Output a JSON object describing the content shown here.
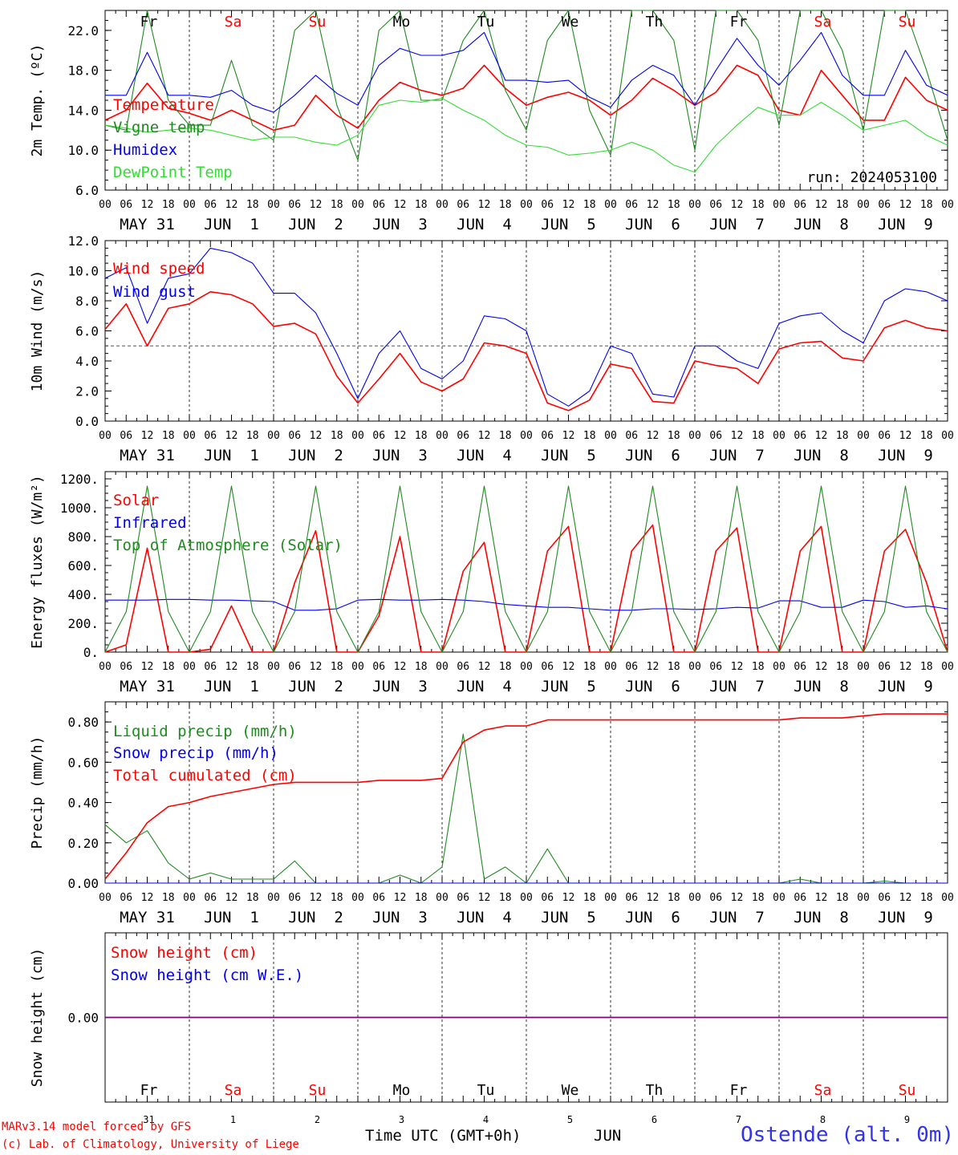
{
  "days": [
    {
      "dow": "Fr",
      "weekend": false,
      "date": "31"
    },
    {
      "dow": "Sa",
      "weekend": true,
      "date": "1"
    },
    {
      "dow": "Su",
      "weekend": true,
      "date": "2"
    },
    {
      "dow": "Mo",
      "weekend": false,
      "date": "3"
    },
    {
      "dow": "Tu",
      "weekend": false,
      "date": "4"
    },
    {
      "dow": "We",
      "weekend": false,
      "date": "5"
    },
    {
      "dow": "Th",
      "weekend": false,
      "date": "6"
    },
    {
      "dow": "Fr",
      "weekend": false,
      "date": "7"
    },
    {
      "dow": "Sa",
      "weekend": true,
      "date": "8"
    },
    {
      "dow": "Su",
      "weekend": true,
      "date": "9"
    }
  ],
  "hour_ticks": [
    "00",
    "06",
    "12",
    "18"
  ],
  "date_labels": [
    "MAY 31",
    "JUN  1",
    "JUN  2",
    "JUN  3",
    "JUN  4",
    "JUN  5",
    "JUN  6",
    "JUN  7",
    "JUN  8",
    "JUN  9"
  ],
  "colors": {
    "red": "#ff0000",
    "green": "#1f8a1f",
    "blue": "#0000ee",
    "lightgreen": "#33dd33",
    "weekend": "#ff0000",
    "purple": "#7f007f"
  },
  "footer": {
    "credit1": "MARv3.14 model forced by GFS",
    "credit2": "(c) Lab. of Climatology, University of Liege",
    "xlabel": "Time UTC (GMT+0h)",
    "month": "JUN",
    "station": "Ostende (alt. 0m)"
  },
  "chart_data": [
    {
      "type": "line",
      "ylabel": "2m Temp. (ºC)",
      "ylim": [
        6,
        24
      ],
      "yticks": [
        "6.0",
        "10.0",
        "14.0",
        "18.0",
        "22.0"
      ],
      "annotation": "run: 2024053100",
      "hours": [
        0,
        6,
        12,
        18,
        24,
        30,
        36,
        42,
        48,
        54,
        60,
        66,
        72,
        78,
        84,
        90,
        96,
        102,
        108,
        114,
        120,
        126,
        132,
        138,
        144,
        150,
        156,
        162,
        168,
        174,
        180,
        186,
        192,
        198,
        204,
        210,
        216,
        222,
        228,
        234,
        240
      ],
      "series": [
        {
          "name": "Temperature",
          "color": "red",
          "values": [
            13.0,
            14.0,
            16.7,
            14.2,
            13.7,
            13.0,
            14.0,
            13.0,
            12.0,
            12.5,
            15.5,
            13.5,
            12.2,
            15.0,
            16.8,
            16.0,
            15.5,
            16.2,
            18.5,
            16.2,
            14.5,
            15.3,
            15.8,
            15.0,
            13.5,
            15.0,
            17.2,
            16.0,
            14.5,
            15.8,
            18.5,
            17.5,
            14.0,
            13.5,
            18.0,
            15.5,
            13.0,
            13.0,
            17.3,
            15.0,
            14.0
          ]
        },
        {
          "name": "Vigne temp",
          "color": "green",
          "values": [
            12.5,
            12.0,
            24.0,
            15.0,
            12.5,
            12.5,
            19.0,
            12.5,
            11.0,
            22.0,
            24.0,
            14.5,
            9.0,
            22.0,
            24.0,
            15.0,
            15.0,
            21.0,
            24.0,
            16.0,
            12.0,
            21.0,
            24.0,
            14.0,
            9.5,
            24.0,
            24.0,
            21.0,
            10.0,
            24.0,
            24.0,
            21.0,
            12.5,
            24.0,
            24.0,
            20.0,
            12.0,
            24.0,
            24.0,
            18.0,
            11.0
          ]
        },
        {
          "name": "Humidex",
          "color": "blue",
          "values": [
            15.5,
            15.5,
            19.8,
            15.5,
            15.5,
            15.3,
            16.0,
            14.5,
            13.8,
            15.5,
            17.5,
            15.7,
            14.5,
            18.5,
            20.2,
            19.5,
            19.5,
            20.0,
            21.8,
            17.0,
            17.0,
            16.8,
            17.0,
            15.3,
            14.3,
            17.0,
            18.5,
            17.5,
            14.5,
            18.0,
            21.2,
            18.5,
            16.5,
            19.0,
            21.8,
            17.5,
            15.5,
            15.5,
            20.0,
            16.5,
            15.5
          ]
        },
        {
          "name": "DewPoint Temp",
          "color": "lightgreen",
          "values": [
            12.5,
            12.2,
            11.8,
            12.0,
            12.2,
            12.0,
            11.5,
            11.0,
            11.3,
            11.3,
            10.8,
            10.5,
            11.5,
            14.5,
            15.0,
            14.8,
            15.2,
            14.0,
            13.0,
            11.5,
            10.5,
            10.3,
            9.5,
            9.7,
            10.0,
            10.8,
            10.0,
            8.5,
            7.8,
            10.5,
            12.5,
            14.3,
            13.5,
            13.5,
            14.8,
            13.5,
            12.0,
            12.5,
            13.0,
            11.5,
            10.5
          ]
        }
      ]
    },
    {
      "type": "line",
      "ylabel": "10m Wind (m/s)",
      "ylim": [
        0,
        12
      ],
      "yticks": [
        "0.0",
        "2.0",
        "4.0",
        "6.0",
        "8.0",
        "10.0",
        "12.0"
      ],
      "hours": [
        0,
        6,
        12,
        18,
        24,
        30,
        36,
        42,
        48,
        54,
        60,
        66,
        72,
        78,
        84,
        90,
        96,
        102,
        108,
        114,
        120,
        126,
        132,
        138,
        144,
        150,
        156,
        162,
        168,
        174,
        180,
        186,
        192,
        198,
        204,
        210,
        216,
        222,
        228,
        234,
        240
      ],
      "series": [
        {
          "name": "Wind speed",
          "color": "red",
          "values": [
            6.1,
            7.8,
            5.0,
            7.5,
            7.8,
            8.6,
            8.4,
            7.8,
            6.3,
            6.5,
            5.8,
            3.0,
            1.2,
            2.8,
            4.5,
            2.6,
            2.0,
            2.8,
            5.2,
            5.0,
            4.5,
            1.2,
            0.7,
            1.4,
            3.8,
            3.5,
            1.3,
            1.2,
            4.0,
            3.7,
            3.5,
            2.5,
            4.8,
            5.2,
            5.3,
            4.2,
            4.0,
            6.2,
            6.7,
            6.2,
            6.0
          ]
        },
        {
          "name": "Wind gust",
          "color": "blue",
          "values": [
            9.5,
            10.2,
            6.5,
            9.5,
            9.8,
            11.5,
            11.2,
            10.5,
            8.5,
            8.5,
            7.2,
            4.5,
            1.5,
            4.5,
            6.0,
            3.5,
            2.8,
            4.0,
            7.0,
            6.8,
            6.0,
            1.8,
            1.0,
            2.0,
            5.0,
            4.5,
            1.8,
            1.6,
            5.0,
            5.0,
            4.0,
            3.5,
            6.5,
            7.0,
            7.2,
            6.0,
            5.2,
            8.0,
            8.8,
            8.6,
            8.0
          ]
        },
        {
          "name": "",
          "color": "black",
          "values": [
            5,
            5
          ]
        }
      ]
    },
    {
      "type": "line",
      "ylabel": "Energy fluxes (W/m²)",
      "ylim": [
        0,
        1250
      ],
      "yticks": [
        "0.",
        "200.",
        "400.",
        "600.",
        "800.",
        "1000.",
        "1200."
      ],
      "hours": [
        0,
        6,
        12,
        18,
        24,
        30,
        36,
        42,
        48,
        54,
        60,
        66,
        72,
        78,
        84,
        90,
        96,
        102,
        108,
        114,
        120,
        126,
        132,
        138,
        144,
        150,
        156,
        162,
        168,
        174,
        180,
        186,
        192,
        198,
        204,
        210,
        216,
        222,
        228,
        234,
        240
      ],
      "series": [
        {
          "name": "Solar",
          "color": "red",
          "values": [
            0,
            50,
            720,
            0,
            0,
            20,
            320,
            0,
            0,
            480,
            840,
            0,
            0,
            250,
            800,
            0,
            0,
            560,
            760,
            0,
            0,
            700,
            870,
            0,
            0,
            700,
            880,
            0,
            0,
            700,
            860,
            0,
            0,
            700,
            870,
            0,
            0,
            700,
            850,
            480,
            0
          ]
        },
        {
          "name": "Infrared",
          "color": "blue",
          "values": [
            360,
            360,
            360,
            365,
            365,
            360,
            360,
            355,
            350,
            290,
            290,
            300,
            360,
            365,
            360,
            360,
            365,
            360,
            350,
            330,
            320,
            310,
            310,
            300,
            290,
            290,
            300,
            300,
            295,
            300,
            310,
            305,
            355,
            355,
            310,
            310,
            360,
            350,
            310,
            320,
            300
          ]
        },
        {
          "name": "Top of Atmosphere (Solar)",
          "color": "green",
          "values": [
            0,
            280,
            1150,
            280,
            0,
            280,
            1150,
            280,
            0,
            280,
            1150,
            280,
            0,
            280,
            1150,
            280,
            0,
            280,
            1150,
            280,
            0,
            280,
            1150,
            280,
            0,
            280,
            1150,
            280,
            0,
            280,
            1150,
            280,
            0,
            280,
            1150,
            280,
            0,
            280,
            1150,
            280,
            0
          ]
        }
      ]
    },
    {
      "type": "line",
      "ylabel": "Precip (mm/h)",
      "ylim": [
        0,
        0.9
      ],
      "yticks": [
        "0.00",
        "0.20",
        "0.40",
        "0.60",
        "0.80"
      ],
      "hours": [
        0,
        6,
        12,
        18,
        24,
        30,
        36,
        42,
        48,
        54,
        60,
        66,
        72,
        78,
        84,
        90,
        96,
        102,
        108,
        114,
        120,
        126,
        132,
        138,
        144,
        150,
        156,
        162,
        168,
        174,
        180,
        186,
        192,
        198,
        204,
        210,
        216,
        222,
        228,
        234,
        240
      ],
      "series": [
        {
          "name": "Liquid precip (mm/h)",
          "color": "green",
          "values": [
            0.29,
            0.2,
            0.26,
            0.1,
            0.02,
            0.05,
            0.02,
            0.02,
            0.02,
            0.11,
            0.0,
            0.0,
            0.0,
            0.0,
            0.04,
            0.0,
            0.08,
            0.74,
            0.02,
            0.08,
            0.0,
            0.17,
            0.0,
            0.0,
            0.0,
            0.0,
            0.0,
            0.0,
            0.0,
            0.0,
            0.0,
            0.0,
            0.0,
            0.02,
            0.0,
            0.0,
            0.0,
            0.01,
            0.0,
            0.0,
            0.0
          ]
        },
        {
          "name": "Snow precip (mm/h)",
          "color": "blue",
          "values": [
            0,
            0,
            0,
            0,
            0,
            0,
            0,
            0,
            0,
            0,
            0,
            0,
            0,
            0,
            0,
            0,
            0,
            0,
            0,
            0,
            0,
            0,
            0,
            0,
            0,
            0,
            0,
            0,
            0,
            0,
            0,
            0,
            0,
            0,
            0,
            0,
            0,
            0,
            0,
            0,
            0
          ]
        },
        {
          "name": "Total cumulated (cm)",
          "color": "red",
          "values": [
            0.02,
            0.15,
            0.3,
            0.38,
            0.4,
            0.43,
            0.45,
            0.47,
            0.49,
            0.5,
            0.5,
            0.5,
            0.5,
            0.51,
            0.51,
            0.51,
            0.52,
            0.7,
            0.76,
            0.78,
            0.78,
            0.81,
            0.81,
            0.81,
            0.81,
            0.81,
            0.81,
            0.81,
            0.81,
            0.81,
            0.81,
            0.81,
            0.81,
            0.82,
            0.82,
            0.82,
            0.83,
            0.84,
            0.84,
            0.84,
            0.84
          ]
        }
      ]
    },
    {
      "type": "line",
      "ylabel": "Snow height (cm)",
      "ylim": [
        -1,
        1
      ],
      "yticks": [
        "0.00"
      ],
      "hours": [
        0,
        240
      ],
      "series": [
        {
          "name": "Snow height (cm)",
          "color": "red",
          "values": [
            0,
            0
          ]
        },
        {
          "name": "Snow height (cm W.E.)",
          "color": "blue",
          "values": [
            0,
            0
          ]
        }
      ]
    }
  ]
}
